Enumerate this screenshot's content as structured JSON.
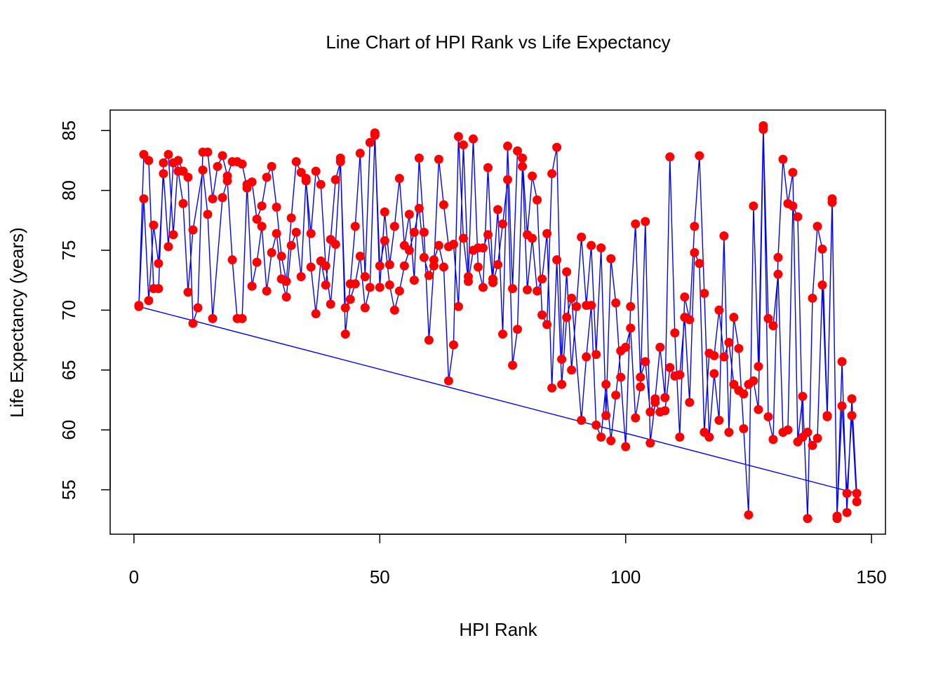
{
  "chart_data": {
    "type": "line",
    "title": "Line Chart of HPI Rank vs Life Expectancy",
    "x_label": "HPI Rank",
    "y_label": "Life Expectancy (years)",
    "line_color": "#0000ff",
    "marker_color": "#ff0000",
    "xlim": [
      -4.84,
      152.84
    ],
    "ylim": [
      51.29,
      86.71
    ],
    "xticks": [
      0,
      50,
      100,
      150
    ],
    "yticks": [
      55,
      60,
      65,
      70,
      75,
      80,
      85
    ],
    "x": [
      1,
      2,
      3,
      4,
      5,
      6,
      7,
      8,
      9,
      10,
      11,
      12,
      13,
      14,
      15,
      16,
      17,
      18,
      19,
      20,
      21,
      22,
      23,
      24,
      25,
      26,
      27,
      28,
      29,
      30,
      31,
      32,
      33,
      34,
      35,
      36,
      37,
      38,
      39,
      40,
      41,
      42,
      43,
      44,
      45,
      46,
      47,
      48,
      49,
      50,
      51,
      52,
      53,
      54,
      55,
      56,
      57,
      58,
      59,
      60,
      61,
      62,
      63,
      64,
      65,
      66,
      67,
      68,
      69,
      70,
      71,
      72,
      73,
      74,
      75,
      76,
      77,
      78,
      79,
      80,
      81,
      82,
      83,
      84,
      85,
      86,
      87,
      88,
      89,
      90,
      91,
      92,
      93,
      94,
      95,
      96,
      97,
      98,
      99,
      100,
      101,
      102,
      103,
      104,
      105,
      106,
      107,
      108,
      109,
      110,
      111,
      112,
      113,
      114,
      115,
      116,
      117,
      118,
      119,
      120,
      121,
      122,
      123,
      124,
      125,
      126,
      127,
      128,
      129,
      130,
      131,
      132,
      133,
      134,
      135,
      136,
      137,
      138,
      139,
      140,
      141,
      142,
      143,
      144,
      145,
      146,
      147,
      1,
      2,
      3,
      4,
      5,
      6,
      7,
      8,
      9,
      10,
      11,
      12,
      14,
      15,
      16,
      18,
      19,
      20,
      21,
      22,
      23,
      24,
      25,
      26,
      27,
      28,
      29,
      30,
      31,
      32,
      33,
      34,
      35,
      36,
      37,
      38,
      39,
      40,
      41,
      42,
      43,
      44,
      45,
      46,
      47,
      48,
      49,
      50,
      51,
      52,
      53,
      54,
      55,
      56,
      57,
      58,
      59,
      60,
      61,
      62,
      63,
      64,
      65,
      66,
      67,
      68,
      69,
      70,
      71,
      72,
      73,
      74,
      75,
      76,
      77,
      78,
      79,
      80,
      81,
      82,
      83,
      84,
      85,
      86,
      87,
      88,
      89,
      91,
      92,
      93,
      94,
      95,
      96,
      97,
      98,
      99,
      100,
      101,
      102,
      103,
      104,
      105,
      106,
      107,
      108,
      109,
      110,
      111,
      112,
      113,
      114,
      115,
      116,
      117,
      118,
      119,
      120,
      121,
      122,
      123,
      124,
      125,
      126,
      127,
      128,
      129,
      130,
      131,
      132,
      133,
      134,
      135,
      136,
      137,
      138,
      139,
      140,
      141,
      142,
      143,
      144,
      145,
      146,
      147
    ],
    "values": [
      70.4,
      83.0,
      82.5,
      71.8,
      71.8,
      82.3,
      83.0,
      76.3,
      82.5,
      81.6,
      81.1,
      68.9,
      70.2,
      83.2,
      83.2,
      79.3,
      82.0,
      82.9,
      81.2,
      82.4,
      82.4,
      82.2,
      80.2,
      80.7,
      77.6,
      78.7,
      81.1,
      82.0,
      78.6,
      74.5,
      72.4,
      77.7,
      82.4,
      81.5,
      80.8,
      76.4,
      81.6,
      80.5,
      73.7,
      70.5,
      75.5,
      82.7,
      68.0,
      72.2,
      77.0,
      83.1,
      72.8,
      84.0,
      84.8,
      71.9,
      78.2,
      73.8,
      77.0,
      81.0,
      75.4,
      78.0,
      72.5,
      82.7,
      76.5,
      67.5,
      73.7,
      82.6,
      78.8,
      75.3,
      75.5,
      70.3,
      83.8,
      72.8,
      84.3,
      73.6,
      71.9,
      81.9,
      72.6,
      78.4,
      68.0,
      83.7,
      71.8,
      83.3,
      82.7,
      76.3,
      81.2,
      79.2,
      69.6,
      68.8,
      81.4,
      83.6,
      65.9,
      73.2,
      65.0,
      70.3,
      76.1,
      70.4,
      75.4,
      66.3,
      75.2,
      61.2,
      74.3,
      70.6,
      64.4,
      58.6,
      70.3,
      77.2,
      64.4,
      65.7,
      61.5,
      62.6,
      66.9,
      62.7,
      82.8,
      68.1,
      59.4,
      71.1,
      69.2,
      77.0,
      82.9,
      71.4,
      59.4,
      64.7,
      60.8,
      76.2,
      59.8,
      69.4,
      66.8,
      60.1,
      52.9,
      78.7,
      65.3,
      85.4,
      61.1,
      59.2,
      74.4,
      82.6,
      78.9,
      81.5,
      59.0,
      62.8,
      52.6,
      71.0,
      77.0,
      75.1,
      61.2,
      79.3,
      52.6,
      65.7,
      53.1,
      62.6,
      54.7,
      70.3,
      79.3,
      70.8,
      77.1,
      73.9,
      81.4,
      75.3,
      82.3,
      81.6,
      78.9,
      71.5,
      76.7,
      81.7,
      78.0,
      69.3,
      79.4,
      80.8,
      74.2,
      69.3,
      69.3,
      80.5,
      72.0,
      74.0,
      77.0,
      71.6,
      74.8,
      76.4,
      72.6,
      71.1,
      75.4,
      76.5,
      72.8,
      81.0,
      73.6,
      69.7,
      74.1,
      72.1,
      75.9,
      80.9,
      82.4,
      70.2,
      70.9,
      72.2,
      74.5,
      70.2,
      71.9,
      84.6,
      73.7,
      75.8,
      72.1,
      70.0,
      71.6,
      73.7,
      75.0,
      76.5,
      78.5,
      74.4,
      72.9,
      74.2,
      75.4,
      73.6,
      64.1,
      67.1,
      84.5,
      76.0,
      72.4,
      75.0,
      75.2,
      75.2,
      76.3,
      72.3,
      73.8,
      77.2,
      80.9,
      65.4,
      68.4,
      82.0,
      71.7,
      76.0,
      71.6,
      72.6,
      76.4,
      63.5,
      74.2,
      63.8,
      69.4,
      71.0,
      60.8,
      66.1,
      70.4,
      60.4,
      59.4,
      63.8,
      59.1,
      62.9,
      66.6,
      66.9,
      68.5,
      61.0,
      63.6,
      77.4,
      58.9,
      62.3,
      61.5,
      61.6,
      65.2,
      64.5,
      64.6,
      69.4,
      62.3,
      74.8,
      73.9,
      59.8,
      66.4,
      66.2,
      70.0,
      66.1,
      67.3,
      63.8,
      63.3,
      63.0,
      63.8,
      64.1,
      61.7,
      85.1,
      69.3,
      68.7,
      73.0,
      59.8,
      60.0,
      78.7,
      77.8,
      59.4,
      59.8,
      58.7,
      59.3,
      72.1,
      61.1,
      79.0,
      52.8,
      62.0,
      54.7,
      61.2,
      54.0
    ]
  }
}
